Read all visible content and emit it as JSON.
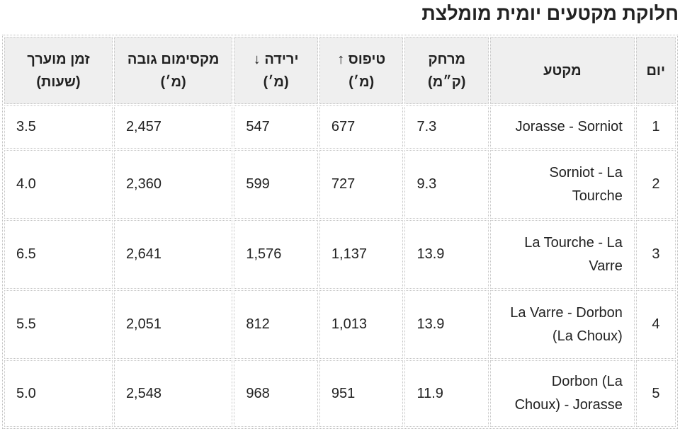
{
  "title": "חלוקת מקטעים יומית מומלצת",
  "table": {
    "headers": {
      "day": "יום",
      "segment": "מקטע",
      "distance": [
        "מרחק",
        "(ק״מ)"
      ],
      "ascent": [
        "טיפוס ↑",
        "(מ׳)"
      ],
      "descent": [
        "ירידה ↓",
        "(מ׳)"
      ],
      "max_altitude": [
        "מקסימום גובה",
        "(מ׳)"
      ],
      "est_time": [
        "זמן מוערך",
        "(שעות)"
      ]
    },
    "rows": [
      {
        "day": "1",
        "segment": "Jorasse - Sorniot",
        "distance": "7.3",
        "ascent": "677",
        "descent": "547",
        "max_altitude": "2,457",
        "est_time": "3.5"
      },
      {
        "day": "2",
        "segment": "Sorniot - La Tourche",
        "distance": "9.3",
        "ascent": "727",
        "descent": "599",
        "max_altitude": "2,360",
        "est_time": "4.0"
      },
      {
        "day": "3",
        "segment": "La Tourche - La Varre",
        "distance": "13.9",
        "ascent": "1,137",
        "descent": "1,576",
        "max_altitude": "2,641",
        "est_time": "6.5"
      },
      {
        "day": "4",
        "segment": "La Varre - Dorbon (La Choux)",
        "distance": "13.9",
        "ascent": "1,013",
        "descent": "812",
        "max_altitude": "2,051",
        "est_time": "5.5"
      },
      {
        "day": "5",
        "segment": "Dorbon (La Choux) - Jorasse",
        "distance": "11.9",
        "ascent": "951",
        "descent": "968",
        "max_altitude": "2,548",
        "est_time": "5.0"
      }
    ]
  }
}
